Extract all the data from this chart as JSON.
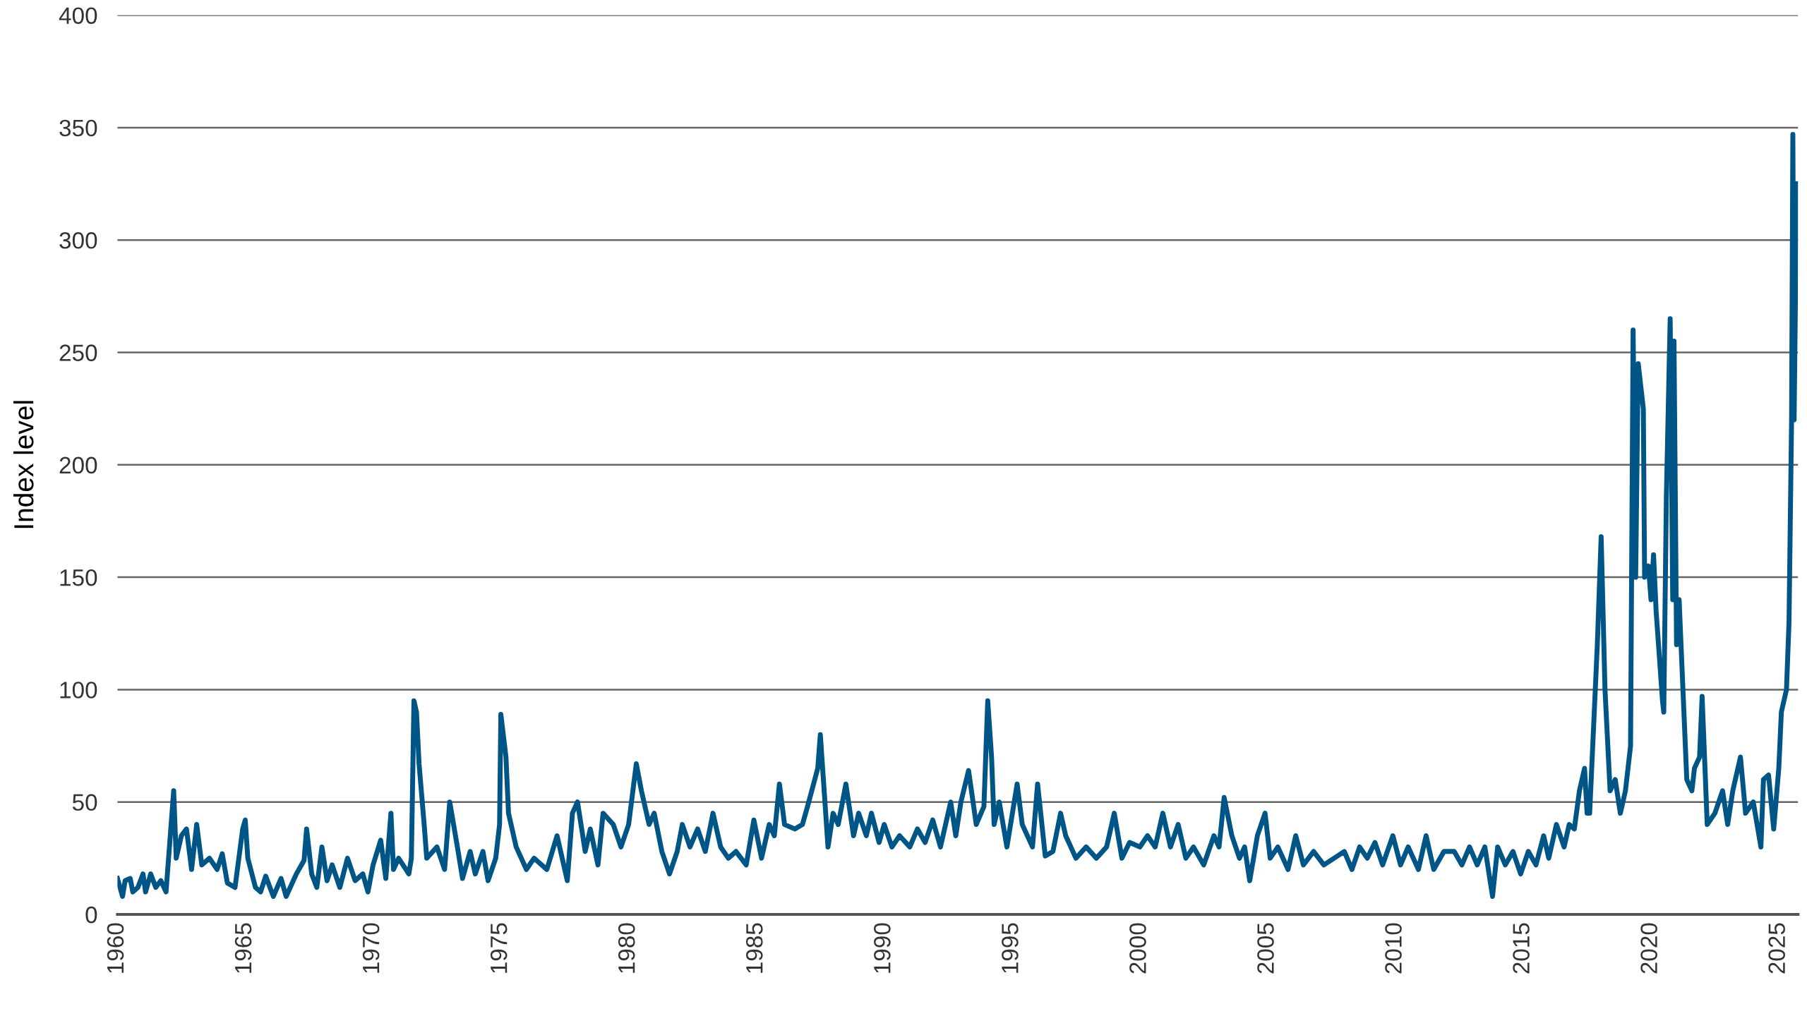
{
  "chart_data": {
    "type": "line",
    "ylabel": "Index level",
    "grid": "y",
    "xlim": [
      1960,
      2025.75
    ],
    "ylim": [
      0,
      400
    ],
    "xticks": [
      1960,
      1965,
      1970,
      1975,
      1980,
      1985,
      1990,
      1995,
      2000,
      2005,
      2010,
      2015,
      2020,
      2025
    ],
    "yticks": [
      0,
      50,
      100,
      150,
      200,
      250,
      300,
      350,
      400
    ],
    "series": [
      {
        "color": "#005587",
        "x": [
          1960,
          1960.2,
          1960.3,
          1960.5,
          1960.6,
          1960.8,
          1961,
          1961.1,
          1961.3,
          1961.5,
          1961.7,
          1961.9,
          1962.1,
          1962.2,
          1962.3,
          1962.5,
          1962.7,
          1962.9,
          1963.1,
          1963.3,
          1963.6,
          1963.9,
          1964.1,
          1964.3,
          1964.6,
          1964.9,
          1965,
          1965.1,
          1965.4,
          1965.6,
          1965.8,
          1966.1,
          1966.4,
          1966.6,
          1967,
          1967.3,
          1967.4,
          1967.6,
          1967.8,
          1968,
          1968.2,
          1968.4,
          1968.7,
          1969,
          1969.3,
          1969.6,
          1969.8,
          1970,
          1970.3,
          1970.5,
          1970.7,
          1970.8,
          1971,
          1971.4,
          1971.5,
          1971.6,
          1971.7,
          1971.8,
          1972,
          1972.1,
          1972.5,
          1972.8,
          1973,
          1973.3,
          1973.5,
          1973.8,
          1974,
          1974.3,
          1974.5,
          1974.8,
          1974.95,
          1975,
          1975.2,
          1975.3,
          1975.6,
          1976,
          1976.3,
          1976.8,
          1977.2,
          1977.6,
          1977.8,
          1978,
          1978.3,
          1978.5,
          1978.8,
          1979,
          1979.4,
          1979.7,
          1980,
          1980.3,
          1980.5,
          1980.8,
          1981,
          1981.3,
          1981.6,
          1981.9,
          1982.1,
          1982.4,
          1982.7,
          1983,
          1983.3,
          1983.6,
          1983.9,
          1984.2,
          1984.6,
          1984.9,
          1985.2,
          1985.5,
          1985.7,
          1985.9,
          1986.1,
          1986.5,
          1986.8,
          1987,
          1987.4,
          1987.5,
          1987.8,
          1988,
          1988.2,
          1988.5,
          1988.8,
          1989,
          1989.3,
          1989.5,
          1989.8,
          1990,
          1990.3,
          1990.6,
          1991,
          1991.3,
          1991.6,
          1991.9,
          1992.2,
          1992.6,
          1992.8,
          1993,
          1993.3,
          1993.6,
          1993.9,
          1994.05,
          1994.2,
          1994.3,
          1994.5,
          1994.8,
          1995.2,
          1995.4,
          1995.8,
          1996,
          1996.3,
          1996.6,
          1996.9,
          1997.1,
          1997.5,
          1997.9,
          1998.3,
          1998.7,
          1999,
          1999.3,
          1999.6,
          2000,
          2000.3,
          2000.6,
          2000.9,
          2001.2,
          2001.5,
          2001.8,
          2002.1,
          2002.5,
          2002.9,
          2003.1,
          2003.3,
          2003.6,
          2003.9,
          2004.1,
          2004.3,
          2004.6,
          2004.9,
          2005.1,
          2005.4,
          2005.8,
          2006.1,
          2006.4,
          2006.8,
          2007.2,
          2007.6,
          2008,
          2008.3,
          2008.6,
          2008.9,
          2009.2,
          2009.5,
          2009.9,
          2010.2,
          2010.5,
          2010.9,
          2011.2,
          2011.5,
          2011.9,
          2012.3,
          2012.6,
          2012.9,
          2013.2,
          2013.5,
          2013.8,
          2014,
          2014.3,
          2014.6,
          2014.9,
          2015.2,
          2015.5,
          2015.8,
          2016,
          2016.3,
          2016.6,
          2016.8,
          2017,
          2017.2,
          2017.4,
          2017.5,
          2017.6,
          2017.9,
          2018.05,
          2018.2,
          2018.4,
          2018.6,
          2018.8,
          2019,
          2019.2,
          2019.3,
          2019.4,
          2019.5,
          2019.7,
          2019.75,
          2019.9,
          2020,
          2020.1,
          2020.2,
          2020.45,
          2020.5,
          2020.6,
          2020.75,
          2020.85,
          2020.9,
          2021,
          2021.1,
          2021.4,
          2021.6,
          2021.7,
          2021.9,
          2022,
          2022.2,
          2022.5,
          2022.8,
          2023,
          2023.2,
          2023.5,
          2023.7,
          2024,
          2024.3,
          2024.4,
          2024.6,
          2024.8,
          2025,
          2025.1,
          2025.3,
          2025.4,
          2025.5,
          2025.55,
          2025.6,
          2025.7
        ],
        "values": [
          16,
          8,
          15,
          16,
          10,
          12,
          18,
          10,
          18,
          12,
          15,
          10,
          40,
          55,
          25,
          35,
          38,
          20,
          40,
          22,
          25,
          20,
          27,
          14,
          12,
          38,
          42,
          25,
          12,
          10,
          17,
          8,
          16,
          8,
          18,
          24,
          38,
          18,
          12,
          30,
          15,
          22,
          12,
          25,
          15,
          18,
          10,
          22,
          33,
          16,
          45,
          20,
          25,
          18,
          25,
          95,
          90,
          67,
          40,
          25,
          30,
          20,
          50,
          30,
          16,
          28,
          18,
          28,
          15,
          25,
          40,
          89,
          70,
          45,
          30,
          20,
          25,
          20,
          35,
          15,
          45,
          50,
          28,
          38,
          22,
          45,
          40,
          30,
          40,
          67,
          55,
          40,
          45,
          28,
          18,
          28,
          40,
          30,
          38,
          28,
          45,
          30,
          25,
          28,
          22,
          42,
          25,
          40,
          35,
          58,
          40,
          38,
          40,
          48,
          65,
          80,
          30,
          45,
          40,
          58,
          35,
          45,
          35,
          45,
          32,
          40,
          30,
          35,
          30,
          38,
          32,
          42,
          30,
          50,
          35,
          50,
          64,
          40,
          48,
          95,
          70,
          40,
          50,
          30,
          58,
          40,
          30,
          58,
          26,
          28,
          45,
          35,
          25,
          30,
          25,
          30,
          45,
          25,
          32,
          30,
          35,
          30,
          45,
          30,
          40,
          25,
          30,
          22,
          35,
          30,
          52,
          35,
          25,
          30,
          15,
          35,
          45,
          25,
          30,
          20,
          35,
          22,
          28,
          22,
          25,
          28,
          20,
          30,
          25,
          32,
          22,
          35,
          22,
          30,
          20,
          35,
          20,
          28,
          28,
          22,
          30,
          22,
          30,
          8,
          30,
          22,
          28,
          18,
          28,
          22,
          35,
          25,
          40,
          30,
          40,
          38,
          55,
          65,
          45,
          45,
          120,
          168,
          100,
          55,
          60,
          45,
          55,
          75,
          260,
          150,
          245,
          225,
          150,
          155,
          140,
          160,
          135,
          95,
          90,
          185,
          265,
          140,
          255,
          120,
          140,
          60,
          55,
          65,
          70,
          97,
          40,
          45,
          55,
          40,
          55,
          70,
          45,
          50,
          30,
          60,
          62,
          38,
          65,
          90,
          100,
          130,
          220,
          347,
          220,
          325
        ]
      }
    ]
  }
}
